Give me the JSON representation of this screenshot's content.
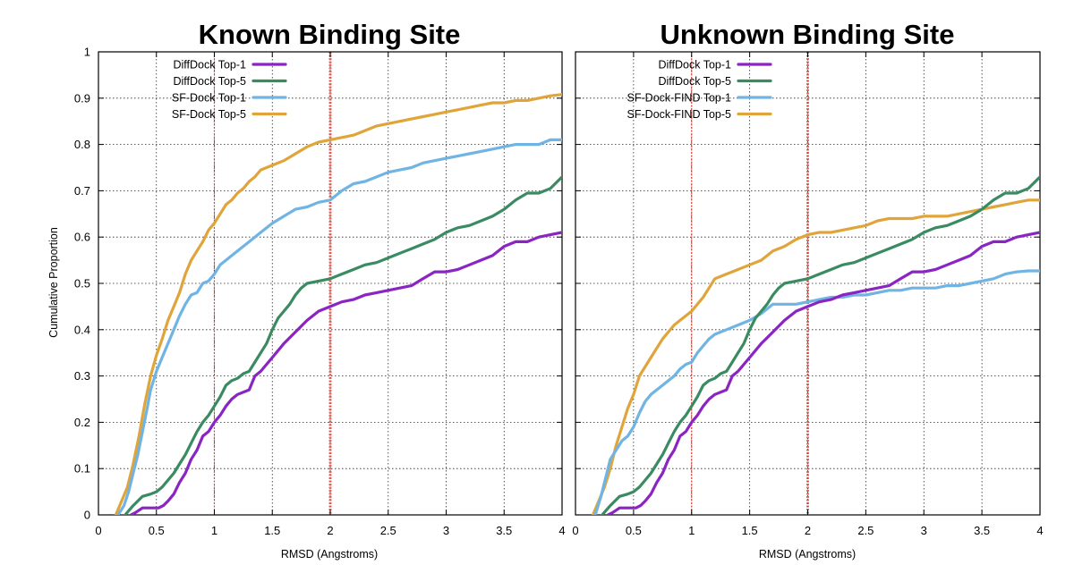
{
  "figure": {
    "ylabel": "Cumulative Proportion"
  },
  "chart_data": [
    {
      "type": "line",
      "title": "Known Binding Site",
      "xlabel": "RMSD (Angstroms)",
      "ylabel": "Cumulative Proportion",
      "xlim": [
        0,
        4
      ],
      "ylim": [
        0,
        1
      ],
      "xticks": [
        0,
        0.5,
        1,
        1.5,
        2,
        2.5,
        3,
        3.5,
        4
      ],
      "xtick_labels": [
        "0",
        "0.5",
        "1",
        "1.5",
        "2",
        "2.5",
        "3",
        "3.5",
        "4"
      ],
      "yticks": [
        0,
        0.1,
        0.2,
        0.3,
        0.4,
        0.5,
        0.6,
        0.7,
        0.8,
        0.9,
        1
      ],
      "ytick_labels": [
        "0",
        "0.1",
        "0.2",
        "0.3",
        "0.4",
        "0.5",
        "0.6",
        "0.7",
        "0.8",
        "0.9",
        "1"
      ],
      "grid": true,
      "legend_position": "top-left",
      "reference_lines": [
        {
          "x": 1,
          "color": "#e8382c",
          "style": "thin-dotted"
        },
        {
          "x": 2,
          "color": "#e8382c",
          "style": "thick-dotted"
        }
      ],
      "series": [
        {
          "name": "DiffDock Top-1",
          "color": "#8a24c2",
          "x": [
            0.28,
            0.32,
            0.38,
            0.45,
            0.52,
            0.56,
            0.6,
            0.65,
            0.7,
            0.75,
            0.8,
            0.85,
            0.9,
            0.95,
            1.0,
            1.05,
            1.1,
            1.15,
            1.2,
            1.3,
            1.35,
            1.4,
            1.5,
            1.6,
            1.7,
            1.8,
            1.9,
            2.0,
            2.1,
            2.2,
            2.3,
            2.4,
            2.5,
            2.6,
            2.7,
            2.8,
            2.9,
            3.0,
            3.1,
            3.2,
            3.3,
            3.4,
            3.5,
            3.6,
            3.7,
            3.8,
            3.9,
            4.0
          ],
          "y": [
            0.0,
            0.005,
            0.015,
            0.015,
            0.015,
            0.02,
            0.03,
            0.045,
            0.07,
            0.09,
            0.12,
            0.14,
            0.17,
            0.18,
            0.2,
            0.215,
            0.235,
            0.25,
            0.26,
            0.27,
            0.3,
            0.31,
            0.34,
            0.37,
            0.395,
            0.42,
            0.44,
            0.45,
            0.46,
            0.465,
            0.475,
            0.48,
            0.485,
            0.49,
            0.495,
            0.51,
            0.525,
            0.525,
            0.53,
            0.54,
            0.55,
            0.56,
            0.58,
            0.59,
            0.59,
            0.6,
            0.605,
            0.61
          ]
        },
        {
          "name": "DiffDock Top-5",
          "color": "#3a8a62",
          "x": [
            0.23,
            0.3,
            0.38,
            0.45,
            0.5,
            0.55,
            0.6,
            0.65,
            0.7,
            0.75,
            0.8,
            0.85,
            0.9,
            0.95,
            1.0,
            1.05,
            1.1,
            1.15,
            1.2,
            1.25,
            1.3,
            1.35,
            1.4,
            1.45,
            1.5,
            1.55,
            1.6,
            1.65,
            1.7,
            1.75,
            1.8,
            1.9,
            2.0,
            2.1,
            2.2,
            2.3,
            2.4,
            2.5,
            2.6,
            2.7,
            2.8,
            2.9,
            3.0,
            3.1,
            3.2,
            3.3,
            3.4,
            3.5,
            3.6,
            3.7,
            3.8,
            3.9,
            4.0
          ],
          "y": [
            0.0,
            0.02,
            0.04,
            0.045,
            0.05,
            0.06,
            0.075,
            0.09,
            0.11,
            0.13,
            0.155,
            0.18,
            0.2,
            0.215,
            0.235,
            0.255,
            0.28,
            0.29,
            0.295,
            0.305,
            0.31,
            0.33,
            0.35,
            0.37,
            0.4,
            0.425,
            0.44,
            0.455,
            0.475,
            0.49,
            0.5,
            0.505,
            0.51,
            0.52,
            0.53,
            0.54,
            0.545,
            0.555,
            0.565,
            0.575,
            0.585,
            0.595,
            0.61,
            0.62,
            0.625,
            0.635,
            0.645,
            0.66,
            0.68,
            0.695,
            0.695,
            0.705,
            0.73
          ]
        },
        {
          "name": "SF-Dock Top-1",
          "color": "#6fb4e3",
          "x": [
            0.17,
            0.22,
            0.26,
            0.3,
            0.34,
            0.38,
            0.42,
            0.45,
            0.5,
            0.55,
            0.6,
            0.65,
            0.7,
            0.75,
            0.8,
            0.85,
            0.9,
            0.95,
            1.0,
            1.05,
            1.1,
            1.15,
            1.2,
            1.3,
            1.35,
            1.4,
            1.5,
            1.6,
            1.7,
            1.8,
            1.9,
            2.0,
            2.1,
            2.2,
            2.3,
            2.4,
            2.5,
            2.6,
            2.7,
            2.8,
            2.9,
            3.0,
            3.1,
            3.2,
            3.3,
            3.4,
            3.5,
            3.6,
            3.7,
            3.8,
            3.9,
            4.0
          ],
          "y": [
            0.0,
            0.02,
            0.05,
            0.09,
            0.13,
            0.18,
            0.23,
            0.27,
            0.31,
            0.34,
            0.37,
            0.4,
            0.43,
            0.455,
            0.475,
            0.48,
            0.5,
            0.505,
            0.52,
            0.54,
            0.55,
            0.56,
            0.57,
            0.59,
            0.6,
            0.61,
            0.63,
            0.645,
            0.66,
            0.665,
            0.675,
            0.68,
            0.7,
            0.715,
            0.72,
            0.73,
            0.74,
            0.745,
            0.75,
            0.76,
            0.765,
            0.77,
            0.775,
            0.78,
            0.785,
            0.79,
            0.795,
            0.8,
            0.8,
            0.8,
            0.81,
            0.81
          ]
        },
        {
          "name": "SF-Dock Top-5",
          "color": "#e0a53a",
          "x": [
            0.15,
            0.2,
            0.25,
            0.3,
            0.35,
            0.4,
            0.45,
            0.5,
            0.55,
            0.6,
            0.65,
            0.7,
            0.75,
            0.8,
            0.85,
            0.9,
            0.95,
            1.0,
            1.05,
            1.1,
            1.15,
            1.2,
            1.25,
            1.3,
            1.35,
            1.4,
            1.5,
            1.6,
            1.7,
            1.8,
            1.9,
            2.0,
            2.1,
            2.2,
            2.3,
            2.4,
            2.5,
            2.6,
            2.7,
            2.8,
            2.9,
            3.0,
            3.1,
            3.2,
            3.3,
            3.4,
            3.5,
            3.6,
            3.7,
            3.8,
            3.9,
            4.0
          ],
          "y": [
            0.0,
            0.03,
            0.06,
            0.11,
            0.17,
            0.24,
            0.3,
            0.345,
            0.38,
            0.42,
            0.45,
            0.48,
            0.52,
            0.55,
            0.57,
            0.59,
            0.615,
            0.63,
            0.65,
            0.67,
            0.68,
            0.695,
            0.705,
            0.72,
            0.73,
            0.745,
            0.755,
            0.765,
            0.78,
            0.795,
            0.805,
            0.81,
            0.815,
            0.82,
            0.83,
            0.84,
            0.845,
            0.85,
            0.855,
            0.86,
            0.865,
            0.87,
            0.875,
            0.88,
            0.885,
            0.89,
            0.89,
            0.895,
            0.895,
            0.9,
            0.905,
            0.908
          ]
        }
      ]
    },
    {
      "type": "line",
      "title": "Unknown Binding Site",
      "xlabel": "RMSD (Angstroms)",
      "ylabel": "",
      "xlim": [
        0,
        4
      ],
      "ylim": [
        0,
        1
      ],
      "xticks": [
        0,
        0.5,
        1,
        1.5,
        2,
        2.5,
        3,
        3.5,
        4
      ],
      "xtick_labels": [
        "0",
        "0.5",
        "1",
        "1.5",
        "2",
        "2.5",
        "3",
        "3.5",
        "4"
      ],
      "yticks": [
        0,
        0.1,
        0.2,
        0.3,
        0.4,
        0.5,
        0.6,
        0.7,
        0.8,
        0.9,
        1
      ],
      "grid": true,
      "legend_position": "top-left",
      "reference_lines": [
        {
          "x": 1,
          "color": "#e8382c",
          "style": "thin-dotted"
        },
        {
          "x": 2,
          "color": "#e8382c",
          "style": "thick-dotted"
        }
      ],
      "series": [
        {
          "name": "DiffDock Top-1",
          "color": "#8a24c2",
          "x": [
            0.28,
            0.32,
            0.38,
            0.45,
            0.52,
            0.56,
            0.6,
            0.65,
            0.7,
            0.75,
            0.8,
            0.85,
            0.9,
            0.95,
            1.0,
            1.05,
            1.1,
            1.15,
            1.2,
            1.3,
            1.35,
            1.4,
            1.5,
            1.6,
            1.7,
            1.8,
            1.9,
            2.0,
            2.1,
            2.2,
            2.3,
            2.4,
            2.5,
            2.6,
            2.7,
            2.8,
            2.9,
            3.0,
            3.1,
            3.2,
            3.3,
            3.4,
            3.5,
            3.6,
            3.7,
            3.8,
            3.9,
            4.0
          ],
          "y": [
            0.0,
            0.005,
            0.015,
            0.015,
            0.015,
            0.02,
            0.03,
            0.045,
            0.07,
            0.09,
            0.12,
            0.14,
            0.17,
            0.18,
            0.2,
            0.215,
            0.235,
            0.25,
            0.26,
            0.27,
            0.3,
            0.31,
            0.34,
            0.37,
            0.395,
            0.42,
            0.44,
            0.45,
            0.46,
            0.465,
            0.475,
            0.48,
            0.485,
            0.49,
            0.495,
            0.51,
            0.525,
            0.525,
            0.53,
            0.54,
            0.55,
            0.56,
            0.58,
            0.59,
            0.59,
            0.6,
            0.605,
            0.61
          ]
        },
        {
          "name": "DiffDock Top-5",
          "color": "#3a8a62",
          "x": [
            0.23,
            0.3,
            0.38,
            0.45,
            0.5,
            0.55,
            0.6,
            0.65,
            0.7,
            0.75,
            0.8,
            0.85,
            0.9,
            0.95,
            1.0,
            1.05,
            1.1,
            1.15,
            1.2,
            1.25,
            1.3,
            1.35,
            1.4,
            1.45,
            1.5,
            1.55,
            1.6,
            1.65,
            1.7,
            1.75,
            1.8,
            1.9,
            2.0,
            2.1,
            2.2,
            2.3,
            2.4,
            2.5,
            2.6,
            2.7,
            2.8,
            2.9,
            3.0,
            3.1,
            3.2,
            3.3,
            3.4,
            3.5,
            3.6,
            3.7,
            3.8,
            3.9,
            4.0
          ],
          "y": [
            0.0,
            0.02,
            0.04,
            0.045,
            0.05,
            0.06,
            0.075,
            0.09,
            0.11,
            0.13,
            0.155,
            0.18,
            0.2,
            0.215,
            0.235,
            0.255,
            0.28,
            0.29,
            0.295,
            0.305,
            0.31,
            0.33,
            0.35,
            0.37,
            0.4,
            0.425,
            0.44,
            0.455,
            0.475,
            0.49,
            0.5,
            0.505,
            0.51,
            0.52,
            0.53,
            0.54,
            0.545,
            0.555,
            0.565,
            0.575,
            0.585,
            0.595,
            0.61,
            0.62,
            0.625,
            0.635,
            0.645,
            0.66,
            0.68,
            0.695,
            0.695,
            0.705,
            0.73
          ]
        },
        {
          "name": "SF-Dock-FIND Top-1",
          "color": "#6fb4e3",
          "x": [
            0.17,
            0.22,
            0.26,
            0.3,
            0.35,
            0.4,
            0.45,
            0.5,
            0.55,
            0.6,
            0.65,
            0.7,
            0.75,
            0.8,
            0.85,
            0.9,
            0.95,
            1.0,
            1.05,
            1.1,
            1.15,
            1.2,
            1.3,
            1.4,
            1.5,
            1.6,
            1.7,
            1.8,
            1.9,
            2.0,
            2.1,
            2.2,
            2.3,
            2.4,
            2.5,
            2.6,
            2.7,
            2.8,
            2.9,
            3.0,
            3.1,
            3.2,
            3.3,
            3.4,
            3.5,
            3.6,
            3.7,
            3.8,
            3.9,
            4.0
          ],
          "y": [
            0.0,
            0.04,
            0.08,
            0.12,
            0.14,
            0.16,
            0.17,
            0.19,
            0.22,
            0.245,
            0.26,
            0.27,
            0.28,
            0.29,
            0.3,
            0.315,
            0.325,
            0.33,
            0.35,
            0.365,
            0.38,
            0.39,
            0.4,
            0.41,
            0.42,
            0.435,
            0.455,
            0.455,
            0.455,
            0.46,
            0.465,
            0.47,
            0.47,
            0.475,
            0.475,
            0.48,
            0.485,
            0.485,
            0.49,
            0.49,
            0.49,
            0.495,
            0.495,
            0.5,
            0.505,
            0.51,
            0.52,
            0.525,
            0.527,
            0.527
          ]
        },
        {
          "name": "SF-Dock-FIND Top-5",
          "color": "#e0a53a",
          "x": [
            0.15,
            0.2,
            0.25,
            0.3,
            0.35,
            0.4,
            0.45,
            0.5,
            0.55,
            0.6,
            0.65,
            0.7,
            0.75,
            0.8,
            0.85,
            0.9,
            0.95,
            1.0,
            1.05,
            1.1,
            1.15,
            1.2,
            1.3,
            1.4,
            1.5,
            1.6,
            1.7,
            1.8,
            1.9,
            2.0,
            2.1,
            2.2,
            2.3,
            2.4,
            2.5,
            2.6,
            2.7,
            2.8,
            2.9,
            3.0,
            3.1,
            3.2,
            3.3,
            3.4,
            3.5,
            3.6,
            3.7,
            3.8,
            3.9,
            4.0
          ],
          "y": [
            0.0,
            0.03,
            0.06,
            0.1,
            0.15,
            0.19,
            0.23,
            0.26,
            0.3,
            0.32,
            0.34,
            0.36,
            0.38,
            0.395,
            0.41,
            0.42,
            0.43,
            0.44,
            0.455,
            0.47,
            0.49,
            0.51,
            0.52,
            0.53,
            0.54,
            0.55,
            0.57,
            0.58,
            0.595,
            0.605,
            0.61,
            0.61,
            0.615,
            0.62,
            0.625,
            0.635,
            0.64,
            0.64,
            0.64,
            0.645,
            0.645,
            0.645,
            0.65,
            0.655,
            0.66,
            0.665,
            0.67,
            0.675,
            0.68,
            0.68
          ]
        }
      ]
    }
  ]
}
